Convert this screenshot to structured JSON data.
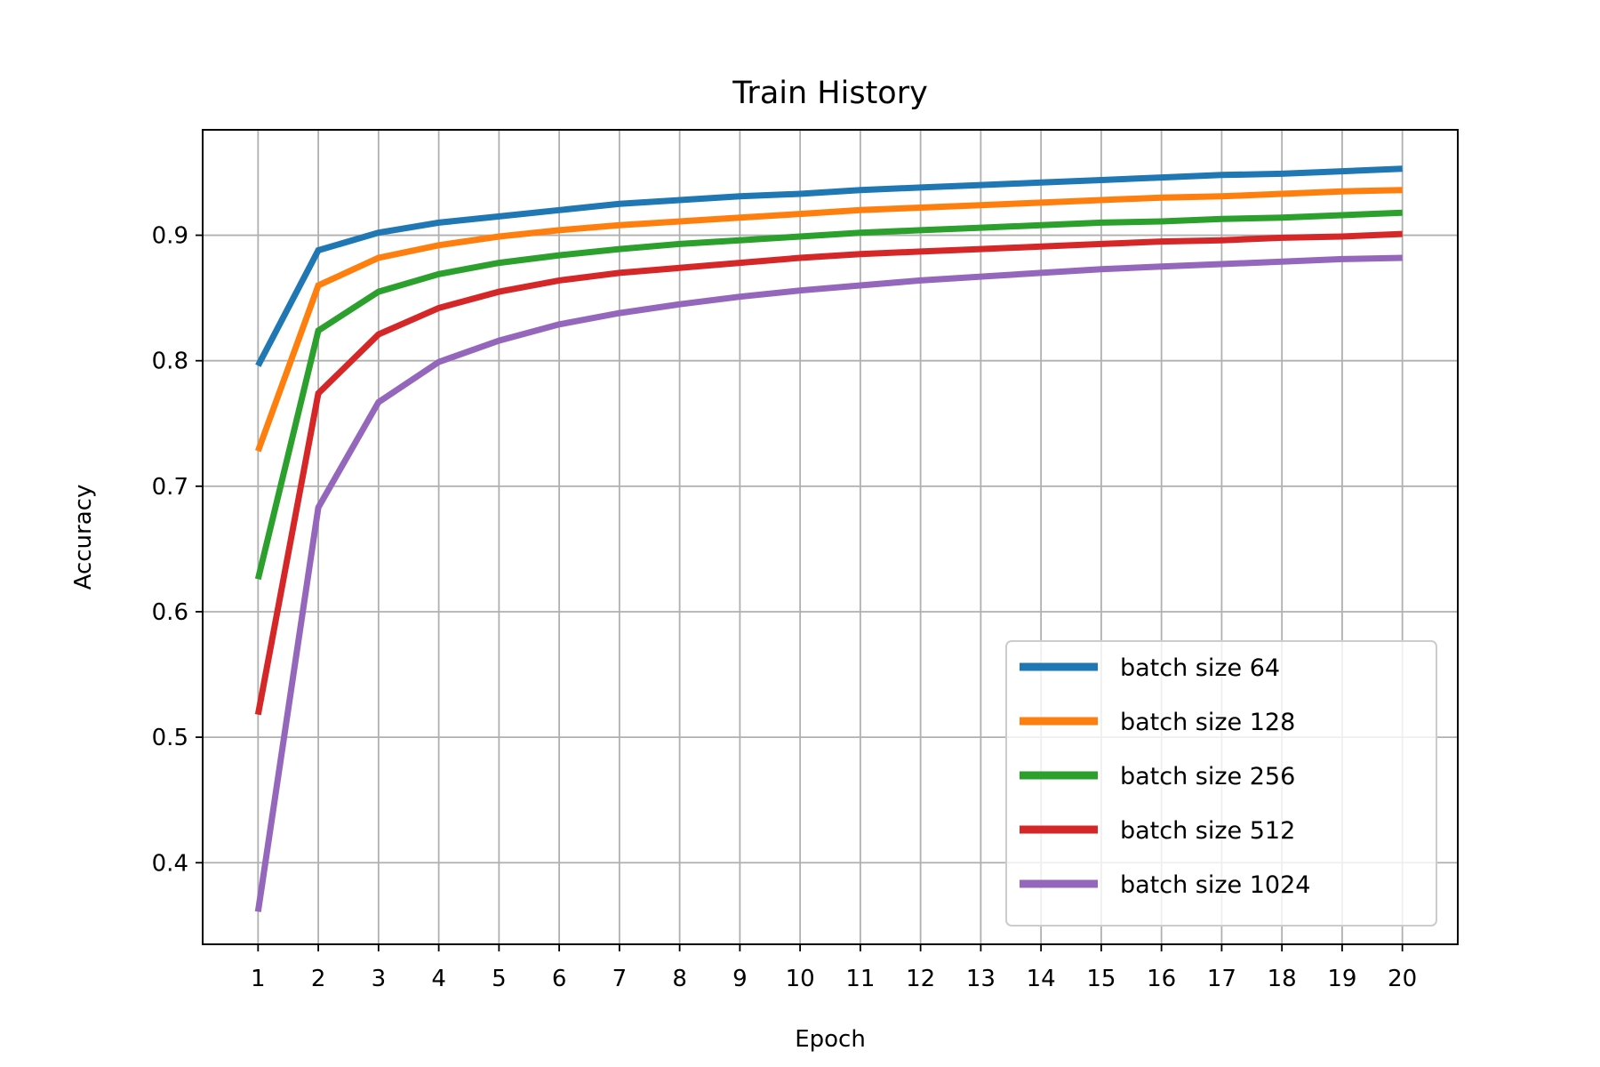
{
  "chart_data": {
    "type": "line",
    "title": "Train History",
    "xlabel": "Epoch",
    "ylabel": "Accuracy",
    "x": [
      1,
      2,
      3,
      4,
      5,
      6,
      7,
      8,
      9,
      10,
      11,
      12,
      13,
      14,
      15,
      16,
      17,
      18,
      19,
      20
    ],
    "xlim": [
      0.08,
      20.92
    ],
    "ylim": [
      0.335,
      0.984
    ],
    "yticks": [
      0.4,
      0.5,
      0.6,
      0.7,
      0.8,
      0.9
    ],
    "ytick_labels": [
      "0.4",
      "0.5",
      "0.6",
      "0.7",
      "0.8",
      "0.9"
    ],
    "xtick_labels": [
      "1",
      "2",
      "3",
      "4",
      "5",
      "6",
      "7",
      "8",
      "9",
      "10",
      "11",
      "12",
      "13",
      "14",
      "15",
      "16",
      "17",
      "18",
      "19",
      "20"
    ],
    "grid": true,
    "legend_position": "lower-right",
    "series": [
      {
        "name": "batch size 64",
        "color": "#1f77b4",
        "values": [
          0.796,
          0.888,
          0.902,
          0.91,
          0.915,
          0.92,
          0.925,
          0.928,
          0.931,
          0.933,
          0.936,
          0.938,
          0.94,
          0.942,
          0.944,
          0.946,
          0.948,
          0.949,
          0.951,
          0.953
        ]
      },
      {
        "name": "batch size 128",
        "color": "#ff7f0e",
        "values": [
          0.728,
          0.86,
          0.882,
          0.892,
          0.899,
          0.904,
          0.908,
          0.911,
          0.914,
          0.917,
          0.92,
          0.922,
          0.924,
          0.926,
          0.928,
          0.93,
          0.931,
          0.933,
          0.935,
          0.936
        ]
      },
      {
        "name": "batch size 256",
        "color": "#2ca02c",
        "values": [
          0.626,
          0.824,
          0.855,
          0.869,
          0.878,
          0.884,
          0.889,
          0.893,
          0.896,
          0.899,
          0.902,
          0.904,
          0.906,
          0.908,
          0.91,
          0.911,
          0.913,
          0.914,
          0.916,
          0.918
        ]
      },
      {
        "name": "batch size 512",
        "color": "#d62728",
        "values": [
          0.518,
          0.774,
          0.821,
          0.842,
          0.855,
          0.864,
          0.87,
          0.874,
          0.878,
          0.882,
          0.885,
          0.887,
          0.889,
          0.891,
          0.893,
          0.895,
          0.896,
          0.898,
          0.899,
          0.901
        ]
      },
      {
        "name": "batch size 1024",
        "color": "#9467bd",
        "values": [
          0.361,
          0.683,
          0.767,
          0.799,
          0.816,
          0.829,
          0.838,
          0.845,
          0.851,
          0.856,
          0.86,
          0.864,
          0.867,
          0.87,
          0.873,
          0.875,
          0.877,
          0.879,
          0.881,
          0.882
        ]
      }
    ]
  }
}
